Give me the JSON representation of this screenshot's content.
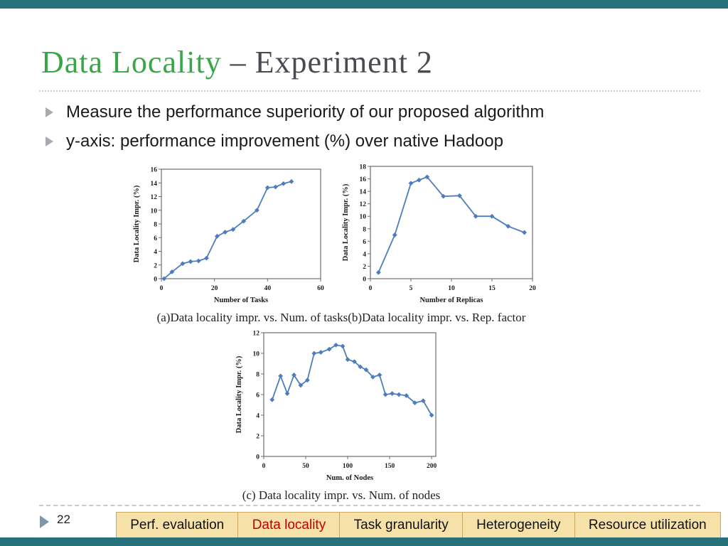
{
  "slide": {
    "title": {
      "part1": "Data Locality",
      "part2": " – Experiment 2"
    },
    "bullets": [
      "Measure the performance superiority of our proposed algorithm",
      "y-axis: performance improvement (%) over native Hadoop"
    ],
    "page_number": "22"
  },
  "captions": {
    "ab": "(a)Data locality impr. vs. Num. of tasks(b)Data locality impr. vs. Rep. factor",
    "c": "(c) Data locality impr. vs. Num. of nodes"
  },
  "footer_nav": {
    "tabs": [
      {
        "label": "Perf. evaluation",
        "active": false
      },
      {
        "label": "Data locality",
        "active": true
      },
      {
        "label": "Task granularity",
        "active": false
      },
      {
        "label": "Heterogeneity",
        "active": false
      },
      {
        "label": "Resource utilization",
        "active": false
      }
    ]
  },
  "colors": {
    "accent_teal": "#26717C",
    "title_green": "#3BA648",
    "title_gray": "#4A4A52",
    "line_blue": "#4E7DBE",
    "nav_bg": "#F6E2A9",
    "nav_border": "#C9A85F",
    "nav_active": "#C00000"
  },
  "chart_data": [
    {
      "type": "line",
      "title": "",
      "xlabel": "Number of Tasks",
      "ylabel": "Data Locality Impr. (%)",
      "xlim": [
        0,
        60
      ],
      "ylim": [
        0,
        16
      ],
      "x_ticks": [
        0,
        20,
        40,
        60
      ],
      "y_ticks": [
        0,
        2,
        4,
        6,
        8,
        10,
        12,
        14,
        16
      ],
      "grid": false,
      "legend": false,
      "x": [
        1,
        4,
        8,
        11,
        14,
        17,
        21,
        24,
        27,
        31,
        36,
        40,
        43,
        46,
        49
      ],
      "y": [
        0,
        1,
        2.2,
        2.5,
        2.6,
        3,
        6.2,
        6.8,
        7.2,
        8.4,
        10,
        13.3,
        13.4,
        13.9,
        14.2
      ]
    },
    {
      "type": "line",
      "title": "",
      "xlabel": "Number of Replicas",
      "ylabel": "Data Locality Impr. (%)",
      "xlim": [
        0,
        20
      ],
      "ylim": [
        0,
        18
      ],
      "x_ticks": [
        0,
        5,
        10,
        15,
        20
      ],
      "y_ticks": [
        0,
        2,
        4,
        6,
        8,
        10,
        12,
        14,
        16,
        18
      ],
      "grid": false,
      "legend": false,
      "x": [
        1,
        3,
        5,
        6,
        7,
        9,
        11,
        13,
        15,
        17,
        19
      ],
      "y": [
        1,
        7,
        15.3,
        15.8,
        16.3,
        13.2,
        13.3,
        10,
        10,
        8.4,
        7.4
      ]
    },
    {
      "type": "line",
      "title": "",
      "xlabel": "Num. of Nodes",
      "ylabel": "Data Locality Impr. (%)",
      "xlim": [
        0,
        205
      ],
      "ylim": [
        0,
        12
      ],
      "x_ticks": [
        0,
        50,
        100,
        150,
        200
      ],
      "y_ticks": [
        0,
        2,
        4,
        6,
        8,
        10,
        12
      ],
      "grid": false,
      "legend": false,
      "x": [
        10,
        20,
        28,
        36,
        44,
        52,
        60,
        68,
        78,
        86,
        94,
        100,
        108,
        115,
        122,
        130,
        138,
        145,
        153,
        161,
        170,
        180,
        190,
        200
      ],
      "y": [
        5.5,
        7.8,
        6.1,
        7.9,
        6.9,
        7.4,
        10,
        10.1,
        10.4,
        10.8,
        10.7,
        9.4,
        9.2,
        8.7,
        8.4,
        7.7,
        7.9,
        6.0,
        6.1,
        6.0,
        5.9,
        5.2,
        5.4,
        4.0
      ]
    }
  ]
}
